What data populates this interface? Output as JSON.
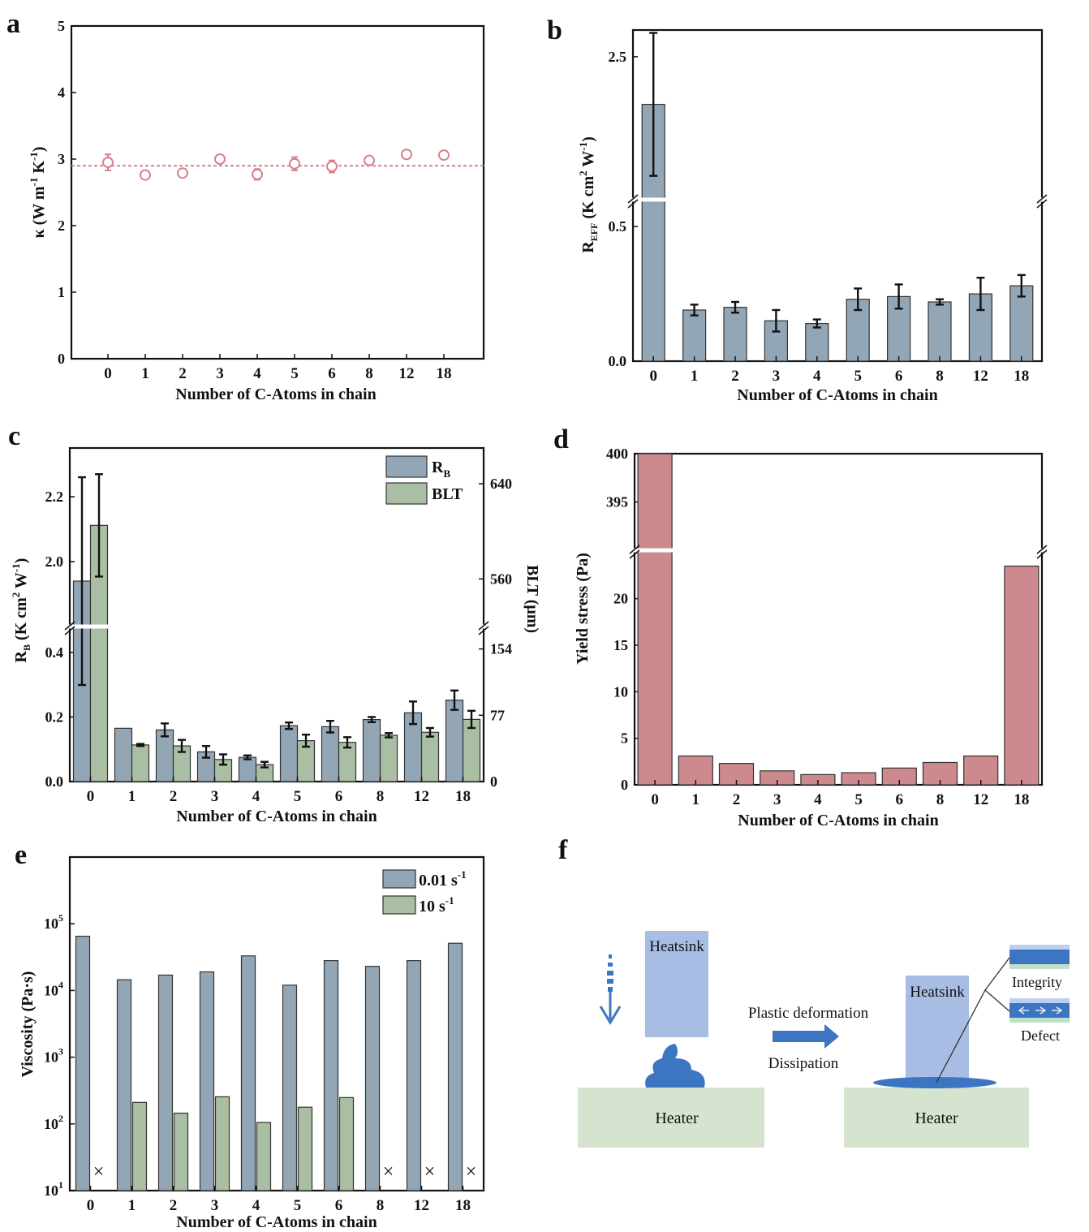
{
  "panel_labels": {
    "a": "a",
    "b": "b",
    "c": "c",
    "d": "d",
    "e": "e",
    "f": "f"
  },
  "colors": {
    "slate": "#93a6b6",
    "green": "#a9bea2",
    "rose": "#cc8a8f",
    "pink_line": "#d8808a",
    "diagram_blue": "#3c75c2",
    "heatsink": "#a8bde3",
    "heater": "#d6e4cf",
    "outline": "#111111"
  },
  "chart_data": [
    {
      "id": "a",
      "type": "scatter",
      "categories": [
        "0",
        "1",
        "2",
        "3",
        "4",
        "5",
        "6",
        "8",
        "12",
        "18"
      ],
      "values": [
        2.95,
        2.76,
        2.79,
        3.0,
        2.77,
        2.93,
        2.89,
        2.98,
        3.07,
        3.06
      ],
      "errors": [
        0.12,
        0.04,
        0.06,
        0.05,
        0.08,
        0.1,
        0.09,
        0.05,
        0.05,
        0.06
      ],
      "mean_line": 2.9,
      "ylim": [
        0,
        5
      ],
      "yticks": [
        0,
        1,
        2,
        3,
        4,
        5
      ],
      "xlabel": "Number of C-Atoms in chain",
      "ylabel": "κ (W m⁻¹ K⁻¹)"
    },
    {
      "id": "b",
      "type": "bar",
      "categories": [
        "0",
        "1",
        "2",
        "3",
        "4",
        "5",
        "6",
        "8",
        "12",
        "18"
      ],
      "values": [
        2.0,
        0.19,
        0.2,
        0.15,
        0.14,
        0.23,
        0.24,
        0.22,
        0.25,
        0.28
      ],
      "errors": [
        0.75,
        0.02,
        0.02,
        0.04,
        0.015,
        0.04,
        0.045,
        0.01,
        0.06,
        0.04
      ],
      "break": {
        "lower": [
          0,
          0.6
        ],
        "upper": [
          1.0,
          2.78
        ]
      },
      "yticks": [
        0.0,
        0.5,
        2.5
      ],
      "xlabel": "Number of C-Atoms in chain",
      "ylabel": "R_EFF (K cm² W⁻¹)"
    },
    {
      "id": "c",
      "type": "bar",
      "categories": [
        "0",
        "1",
        "2",
        "3",
        "4",
        "5",
        "6",
        "8",
        "12",
        "18"
      ],
      "series": [
        {
          "name": "RB",
          "values": [
            1.94,
            0.165,
            0.16,
            0.092,
            0.075,
            0.173,
            0.17,
            0.192,
            0.213,
            0.252
          ],
          "errors": [
            0.32,
            0.0,
            0.02,
            0.018,
            0.006,
            0.01,
            0.018,
            0.008,
            0.035,
            0.03
          ]
        },
        {
          "name": "BLT",
          "values": [
            605,
            42.5,
            41.4,
            25.6,
            19.7,
            47.5,
            45.5,
            53.8,
            57.2,
            72.2
          ],
          "errors": [
            43,
            1.2,
            7,
            6,
            3.2,
            7,
            6,
            2.5,
            5,
            10
          ]
        }
      ],
      "left_axis": {
        "lower": [
          0,
          0.48
        ],
        "upper": [
          1.8,
          2.35
        ],
        "yticks": [
          0.0,
          0.2,
          0.4,
          2.0,
          2.2
        ],
        "label": "R_B (K cm² W⁻¹)"
      },
      "right_axis": {
        "lower": [
          0,
          180
        ],
        "upper": [
          520,
          670
        ],
        "yticks": [
          0,
          77,
          154,
          560,
          640
        ],
        "label": "BLT (μm)"
      },
      "legend": [
        {
          "label": "R",
          "sub": "B"
        },
        {
          "label": "BLT",
          "sub": ""
        }
      ],
      "legend_position": "top-right",
      "xlabel": "Number of C-Atoms in chain"
    },
    {
      "id": "d",
      "type": "bar",
      "categories": [
        "0",
        "1",
        "2",
        "3",
        "4",
        "5",
        "6",
        "8",
        "12",
        "18"
      ],
      "values": [
        400,
        3.1,
        2.3,
        1.5,
        1.1,
        1.3,
        1.8,
        2.4,
        3.1,
        23.5
      ],
      "break": {
        "lower": [
          0,
          25.2
        ],
        "upper": [
          390,
          400
        ]
      },
      "yticks": [
        0,
        5,
        10,
        15,
        20,
        395,
        400
      ],
      "xlabel": "Number of C-Atoms in chain",
      "ylabel": "Yield stress (Pa)"
    },
    {
      "id": "e",
      "type": "bar",
      "scale": "log",
      "categories": [
        "0",
        "1",
        "2",
        "3",
        "4",
        "5",
        "6",
        "8",
        "12",
        "18"
      ],
      "series": [
        {
          "name": "0.01 s⁻¹",
          "values": [
            65000,
            14500,
            17000,
            19000,
            33000,
            12000,
            28000,
            23000,
            28000,
            51000
          ]
        },
        {
          "name": "10 s⁻¹",
          "values": [
            null,
            210,
            145,
            255,
            105,
            178,
            248,
            null,
            null,
            null
          ]
        }
      ],
      "missing_marker": "×",
      "ylim": [
        10,
        1000000
      ],
      "yticks": [
        {
          "base": "10",
          "exp": "1"
        },
        {
          "base": "10",
          "exp": "2"
        },
        {
          "base": "10",
          "exp": "3"
        },
        {
          "base": "10",
          "exp": "4"
        },
        {
          "base": "10",
          "exp": "5"
        }
      ],
      "legend": [
        {
          "label": "0.01 s",
          "sup": "-1"
        },
        {
          "label": "10 s",
          "sup": "-1"
        }
      ],
      "legend_position": "top-right",
      "xlabel": "Number of C-Atoms in chain",
      "ylabel": "Viscosity (Pa·s)"
    }
  ],
  "diagram_f": {
    "heatsink_left": "Heatsink",
    "heatsink_right": "Heatsink",
    "heater_left": "Heater",
    "heater_right": "Heater",
    "arrow_top": "Plastic deformation",
    "arrow_bottom": "Dissipation",
    "integrity": "Integrity",
    "defect": "Defect"
  }
}
